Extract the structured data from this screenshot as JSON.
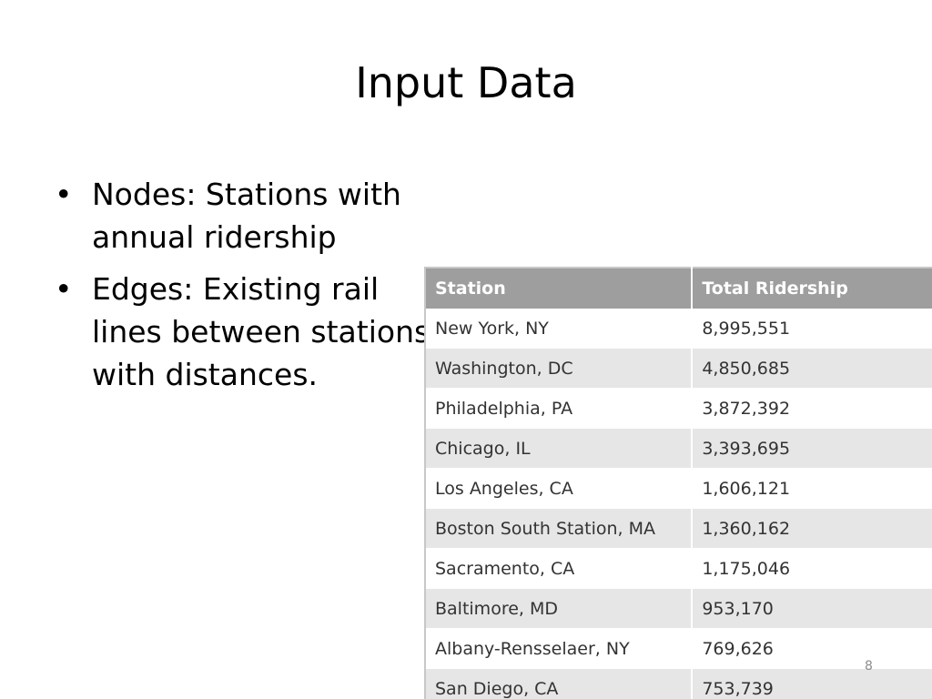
{
  "slide": {
    "title": "Input Data",
    "bullets": [
      {
        "marker": "•",
        "text": "Nodes: Stations with annual ridership"
      },
      {
        "marker": "•",
        "text": "Edges: Existing rail lines between stations with distances."
      }
    ],
    "page_number": "8"
  },
  "table": {
    "headers": [
      "Station",
      "Total Ridership"
    ],
    "rows": [
      {
        "station": "New York, NY",
        "total": "8,995,551"
      },
      {
        "station": "Washington, DC",
        "total": "4,850,685"
      },
      {
        "station": "Philadelphia, PA",
        "total": "3,872,392"
      },
      {
        "station": "Chicago, IL",
        "total": "3,393,695"
      },
      {
        "station": "Los Angeles, CA",
        "total": "1,606,121"
      },
      {
        "station": "Boston South Station, MA",
        "total": "1,360,162"
      },
      {
        "station": "Sacramento, CA",
        "total": "1,175,046"
      },
      {
        "station": "Baltimore, MD",
        "total": "953,170"
      },
      {
        "station": "Albany-Rensselaer, NY",
        "total": "769,626"
      },
      {
        "station": "San Diego, CA",
        "total": "753,739"
      }
    ]
  },
  "colors": {
    "header_bg": "#9e9e9e",
    "row_alt_bg": "#e6e6e6",
    "page_number": "#8c8c8c"
  }
}
